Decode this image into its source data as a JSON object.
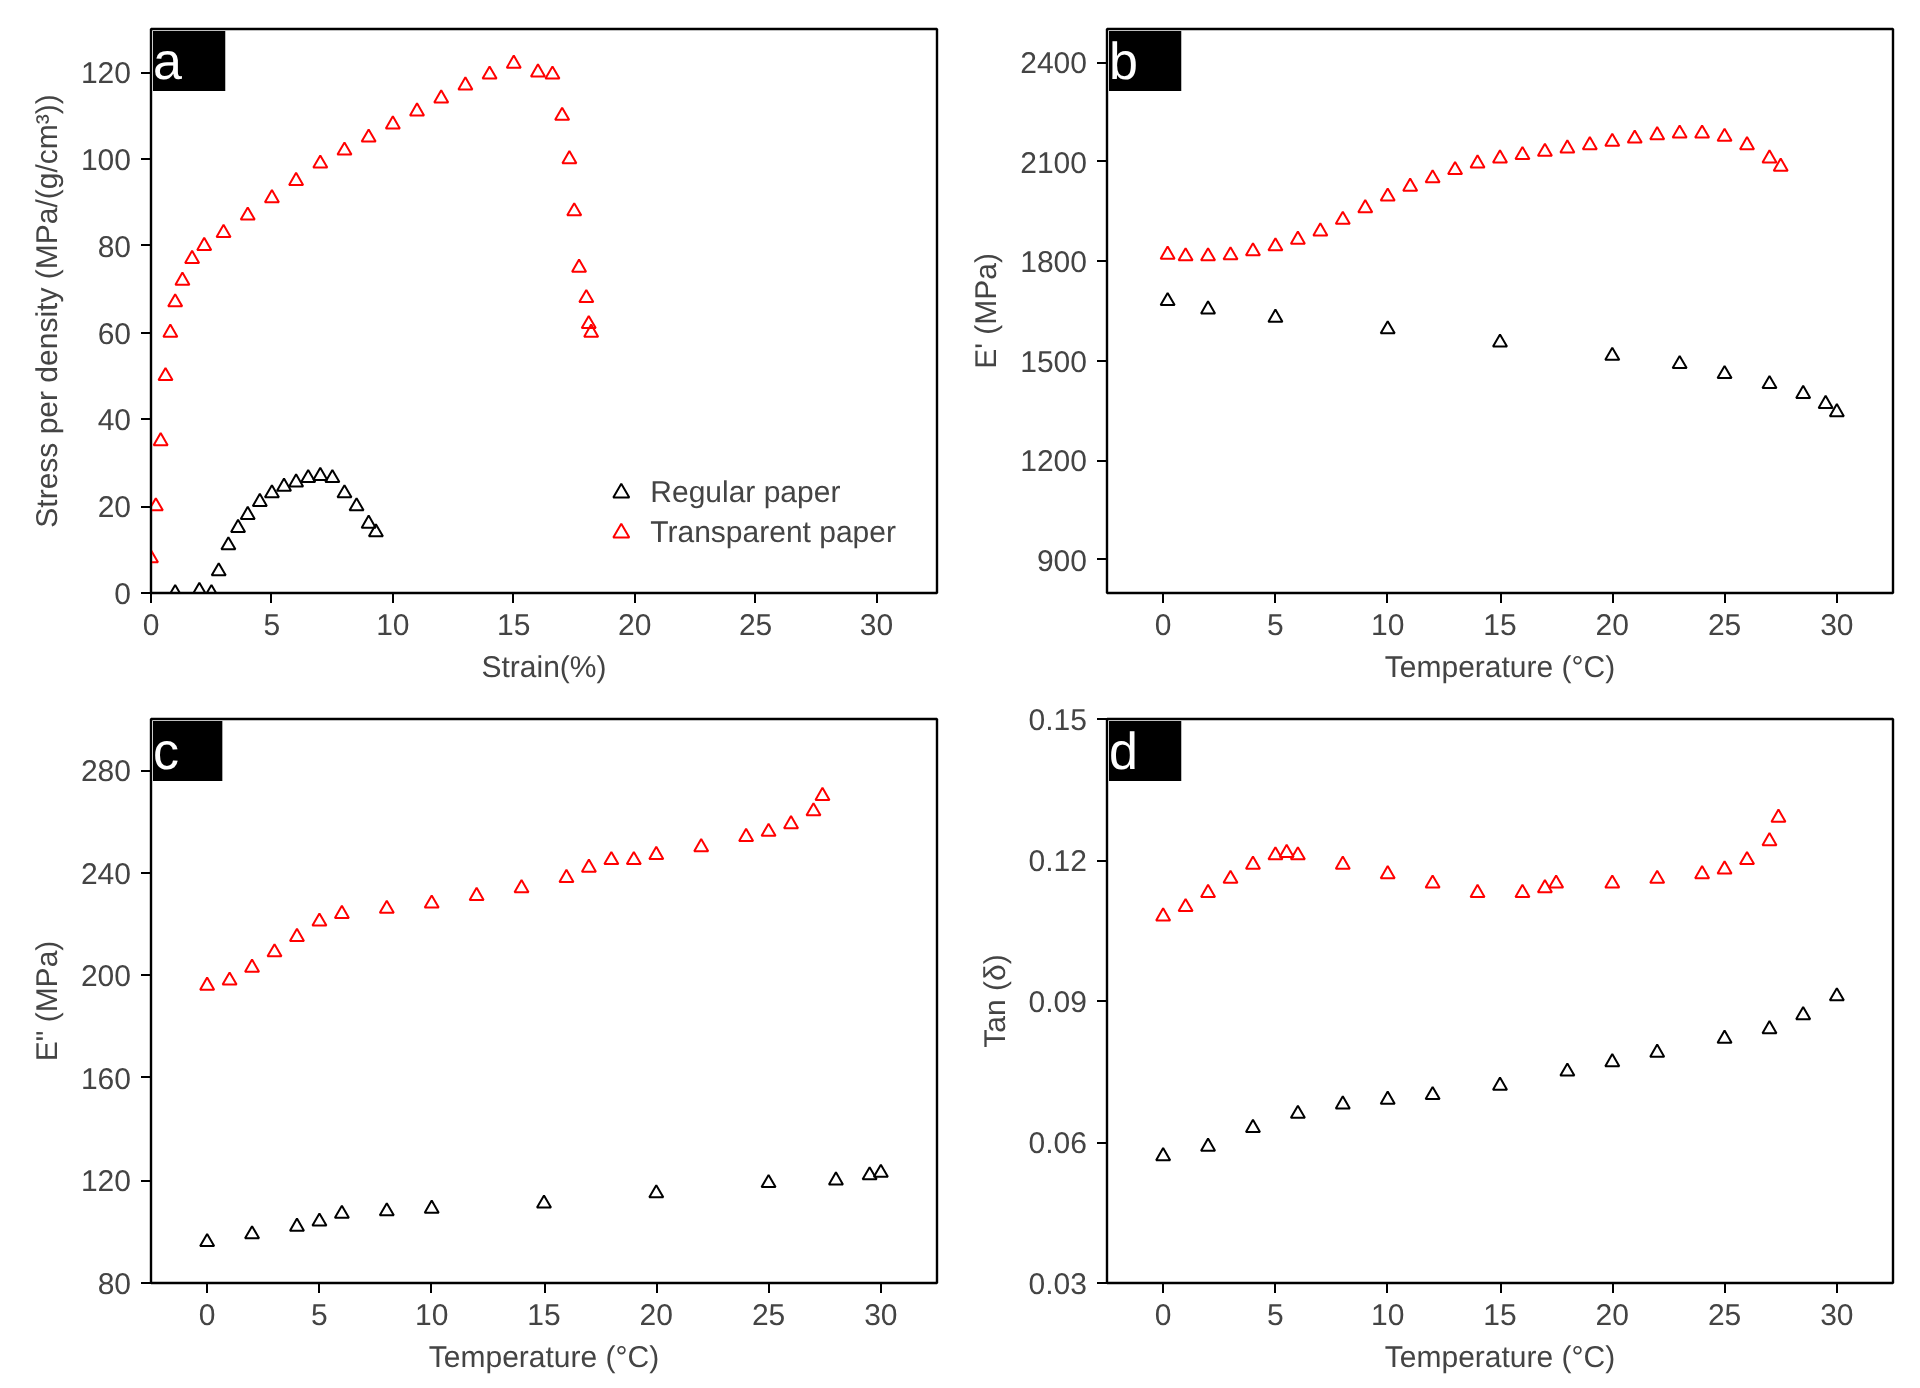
{
  "chart_data": [
    {
      "type": "scatter",
      "title": "a",
      "xlabel": "Strain(%)",
      "ylabel": "Stress per density (MPa/(g/cm³))",
      "xlim": [
        0,
        32.5
      ],
      "ylim": [
        0,
        130
      ],
      "xticks": [
        0,
        5,
        10,
        15,
        20,
        25,
        30
      ],
      "yticks": [
        0,
        20,
        40,
        60,
        80,
        100,
        120
      ],
      "grid": false,
      "marker": "triangle",
      "legend": "bottom right",
      "series": [
        {
          "name": "Regular paper",
          "color": "#000000",
          "x": [
            1,
            2,
            2.5,
            2.8,
            3.2,
            3.6,
            4,
            4.5,
            5,
            5.5,
            6,
            6.5,
            7,
            7.5,
            8,
            8.5,
            9,
            9.3
          ],
          "values": [
            0,
            0.5,
            0,
            5,
            11,
            15,
            18,
            21,
            23,
            24.5,
            25.5,
            26.5,
            27,
            26.5,
            23,
            20,
            16,
            14
          ]
        },
        {
          "name": "Transparent paper",
          "color": "#ff0000",
          "x": [
            0,
            0.2,
            0.4,
            0.6,
            0.8,
            1.0,
            1.3,
            1.7,
            2.2,
            3,
            4,
            5,
            6,
            7,
            8,
            9,
            10,
            11,
            12,
            13,
            14,
            15,
            16,
            16.6,
            17,
            17.3,
            17.5,
            17.7,
            18,
            18.1,
            18.2
          ],
          "values": [
            8,
            20,
            35,
            50,
            60,
            67,
            72,
            77,
            80,
            83,
            87,
            91,
            95,
            99,
            102,
            105,
            108,
            111,
            114,
            117,
            119.5,
            122,
            120,
            119.5,
            110,
            100,
            88,
            75,
            68,
            62,
            60
          ]
        }
      ]
    },
    {
      "type": "scatter",
      "title": "b",
      "xlabel": "Temperature (°C)",
      "ylabel": "E' (MPa)",
      "xlim": [
        -2.5,
        32.5
      ],
      "ylim": [
        800,
        2500
      ],
      "xticks": [
        0,
        5,
        10,
        15,
        20,
        25,
        30
      ],
      "yticks": [
        900,
        1200,
        1500,
        1800,
        2100,
        2400
      ],
      "grid": false,
      "marker": "triangle",
      "series": [
        {
          "color": "#ff0000",
          "x": [
            0.2,
            1,
            2,
            3,
            4,
            5,
            6,
            7,
            8,
            9,
            10,
            11,
            12,
            13,
            14,
            15,
            16,
            17,
            18,
            19,
            20,
            21,
            22,
            23,
            24,
            25,
            26,
            27,
            27.5
          ],
          "values": [
            1820,
            1815,
            1815,
            1818,
            1830,
            1845,
            1865,
            1890,
            1925,
            1960,
            1995,
            2025,
            2050,
            2075,
            2095,
            2110,
            2120,
            2130,
            2140,
            2150,
            2160,
            2170,
            2180,
            2185,
            2185,
            2175,
            2150,
            2110,
            2085
          ]
        },
        {
          "color": "#000000",
          "x": [
            0.2,
            2,
            5,
            10,
            15,
            20,
            23,
            25,
            27,
            28.5,
            29.5,
            30
          ],
          "values": [
            1680,
            1655,
            1630,
            1595,
            1555,
            1515,
            1490,
            1460,
            1430,
            1400,
            1370,
            1345
          ]
        }
      ]
    },
    {
      "type": "scatter",
      "title": "c",
      "xlabel": "Temperature (°C)",
      "ylabel": "E\" (MPa)",
      "xlim": [
        -2.5,
        32.5
      ],
      "ylim": [
        80,
        300
      ],
      "xticks": [
        0,
        5,
        10,
        15,
        20,
        25,
        30
      ],
      "yticks": [
        80,
        120,
        160,
        200,
        240,
        280
      ],
      "grid": false,
      "marker": "triangle",
      "series": [
        {
          "color": "#ff0000",
          "x": [
            0,
            1,
            2,
            3,
            4,
            5,
            6,
            8,
            10,
            12,
            14,
            16,
            17,
            18,
            19,
            20,
            22,
            24,
            25,
            26,
            27,
            27.4
          ],
          "values": [
            196,
            198,
            203,
            209,
            215,
            221,
            224,
            226,
            228,
            231,
            234,
            238,
            242,
            245,
            245,
            247,
            250,
            254,
            256,
            259,
            264,
            270
          ]
        },
        {
          "color": "#000000",
          "x": [
            0,
            2,
            4,
            5,
            6,
            8,
            10,
            15,
            20,
            25,
            28,
            29.5,
            30
          ],
          "values": [
            96,
            99,
            102,
            104,
            107,
            108,
            109,
            111,
            115,
            119,
            120,
            122,
            123
          ]
        }
      ]
    },
    {
      "type": "scatter",
      "title": "d",
      "xlabel": "Temperature (°C)",
      "ylabel": "Tan (δ)",
      "xlim": [
        -2.5,
        32.5
      ],
      "ylim": [
        0.03,
        0.15
      ],
      "xticks": [
        0,
        5,
        10,
        15,
        20,
        25,
        30
      ],
      "yticks": [
        {
          "value": 0.03,
          "label": "0.03"
        },
        {
          "value": 0.06,
          "label": "0.06"
        },
        {
          "value": 0.09,
          "label": "0.09"
        },
        {
          "value": 0.12,
          "label": "0.12"
        },
        {
          "value": 0.15,
          "label": "0.15"
        }
      ],
      "grid": false,
      "marker": "triangle",
      "series": [
        {
          "color": "#ff0000",
          "x": [
            0,
            1,
            2,
            3,
            4,
            5,
            5.5,
            6,
            8,
            10,
            12,
            14,
            16,
            17,
            17.5,
            20,
            22,
            24,
            25,
            26,
            27,
            27.4
          ],
          "values": [
            0.108,
            0.11,
            0.113,
            0.116,
            0.119,
            0.121,
            0.1215,
            0.121,
            0.119,
            0.117,
            0.115,
            0.113,
            0.113,
            0.114,
            0.115,
            0.115,
            0.116,
            0.117,
            0.118,
            0.12,
            0.124,
            0.129
          ]
        },
        {
          "color": "#000000",
          "x": [
            0,
            2,
            4,
            6,
            8,
            10,
            12,
            15,
            18,
            20,
            22,
            25,
            27,
            28.5,
            30
          ],
          "values": [
            0.057,
            0.059,
            0.063,
            0.066,
            0.068,
            0.069,
            0.07,
            0.072,
            0.075,
            0.077,
            0.079,
            0.082,
            0.084,
            0.087,
            0.091
          ]
        }
      ]
    }
  ]
}
